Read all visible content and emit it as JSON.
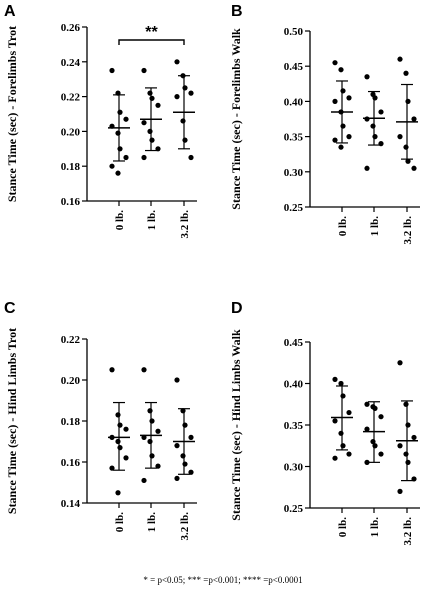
{
  "footnote": "* = p<0.05;  *** =p<0.001; **** =p<0.0001",
  "chart_data": [
    {
      "panel": "A",
      "type": "scatter",
      "ylabel": "Stance Time (sec) - Forelimbs Trot",
      "ylim": [
        0.16,
        0.26
      ],
      "yticks": [
        "0.16",
        "0.18",
        "0.20",
        "0.22",
        "0.24",
        "0.26"
      ],
      "categories": [
        "0 lb.",
        "1 lb.",
        "3.2 lb."
      ],
      "points": [
        [
          0.235,
          0.222,
          0.211,
          0.207,
          0.203,
          0.199,
          0.19,
          0.185,
          0.18,
          0.176
        ],
        [
          0.235,
          0.222,
          0.219,
          0.215,
          0.205,
          0.2,
          0.195,
          0.19,
          0.185
        ],
        [
          0.24,
          0.232,
          0.225,
          0.222,
          0.22,
          0.206,
          0.195,
          0.185
        ]
      ],
      "mean": [
        0.202,
        0.207,
        0.211
      ],
      "sd_low": [
        0.183,
        0.189,
        0.19
      ],
      "sd_high": [
        0.221,
        0.225,
        0.232
      ],
      "significance": {
        "from": 0,
        "to": 2,
        "label": "**"
      }
    },
    {
      "panel": "B",
      "type": "scatter",
      "ylabel": "Stance Time (sec) - Forelimbs Walk",
      "ylim": [
        0.25,
        0.5
      ],
      "yticks": [
        "0.25",
        "0.30",
        "0.35",
        "0.40",
        "0.45",
        "0.50"
      ],
      "categories": [
        "0 lb.",
        "1 lb.",
        "3.2 lb."
      ],
      "points": [
        [
          0.455,
          0.445,
          0.415,
          0.405,
          0.4,
          0.385,
          0.365,
          0.35,
          0.345,
          0.335
        ],
        [
          0.435,
          0.41,
          0.405,
          0.385,
          0.375,
          0.365,
          0.35,
          0.34,
          0.305
        ],
        [
          0.46,
          0.44,
          0.4,
          0.375,
          0.35,
          0.335,
          0.315,
          0.305
        ]
      ],
      "mean": [
        0.385,
        0.376,
        0.371
      ],
      "sd_low": [
        0.341,
        0.338,
        0.318
      ],
      "sd_high": [
        0.429,
        0.414,
        0.424
      ]
    },
    {
      "panel": "C",
      "type": "scatter",
      "ylabel": "Stance Time (sec) - Hind Limbs Trot",
      "ylim": [
        0.14,
        0.22
      ],
      "yticks": [
        "0.14",
        "0.16",
        "0.18",
        "0.20",
        "0.22"
      ],
      "categories": [
        "0 lb.",
        "1 lb.",
        "3.2 lb."
      ],
      "points": [
        [
          0.205,
          0.183,
          0.178,
          0.176,
          0.172,
          0.17,
          0.167,
          0.162,
          0.157,
          0.145
        ],
        [
          0.205,
          0.185,
          0.18,
          0.175,
          0.172,
          0.17,
          0.163,
          0.158,
          0.151
        ],
        [
          0.2,
          0.185,
          0.178,
          0.172,
          0.168,
          0.163,
          0.159,
          0.155,
          0.152
        ]
      ],
      "mean": [
        0.172,
        0.173,
        0.17
      ],
      "sd_low": [
        0.156,
        0.157,
        0.154
      ],
      "sd_high": [
        0.189,
        0.189,
        0.186
      ]
    },
    {
      "panel": "D",
      "type": "scatter",
      "ylabel": "Stance Time (sec) - Hind Limbs Walk",
      "ylim": [
        0.25,
        0.45
      ],
      "yticks": [
        "0.25",
        "0.30",
        "0.35",
        "0.40",
        "0.45"
      ],
      "categories": [
        "0 lb.",
        "1 lb.",
        "3.2 lb."
      ],
      "points": [
        [
          0.405,
          0.4,
          0.385,
          0.365,
          0.355,
          0.34,
          0.325,
          0.315,
          0.31
        ],
        [
          0.375,
          0.372,
          0.37,
          0.36,
          0.345,
          0.33,
          0.325,
          0.315,
          0.305
        ],
        [
          0.425,
          0.375,
          0.35,
          0.335,
          0.325,
          0.315,
          0.305,
          0.285,
          0.27
        ]
      ],
      "mean": [
        0.359,
        0.342,
        0.331
      ],
      "sd_low": [
        0.32,
        0.305,
        0.283
      ],
      "sd_high": [
        0.397,
        0.378,
        0.379
      ]
    }
  ]
}
